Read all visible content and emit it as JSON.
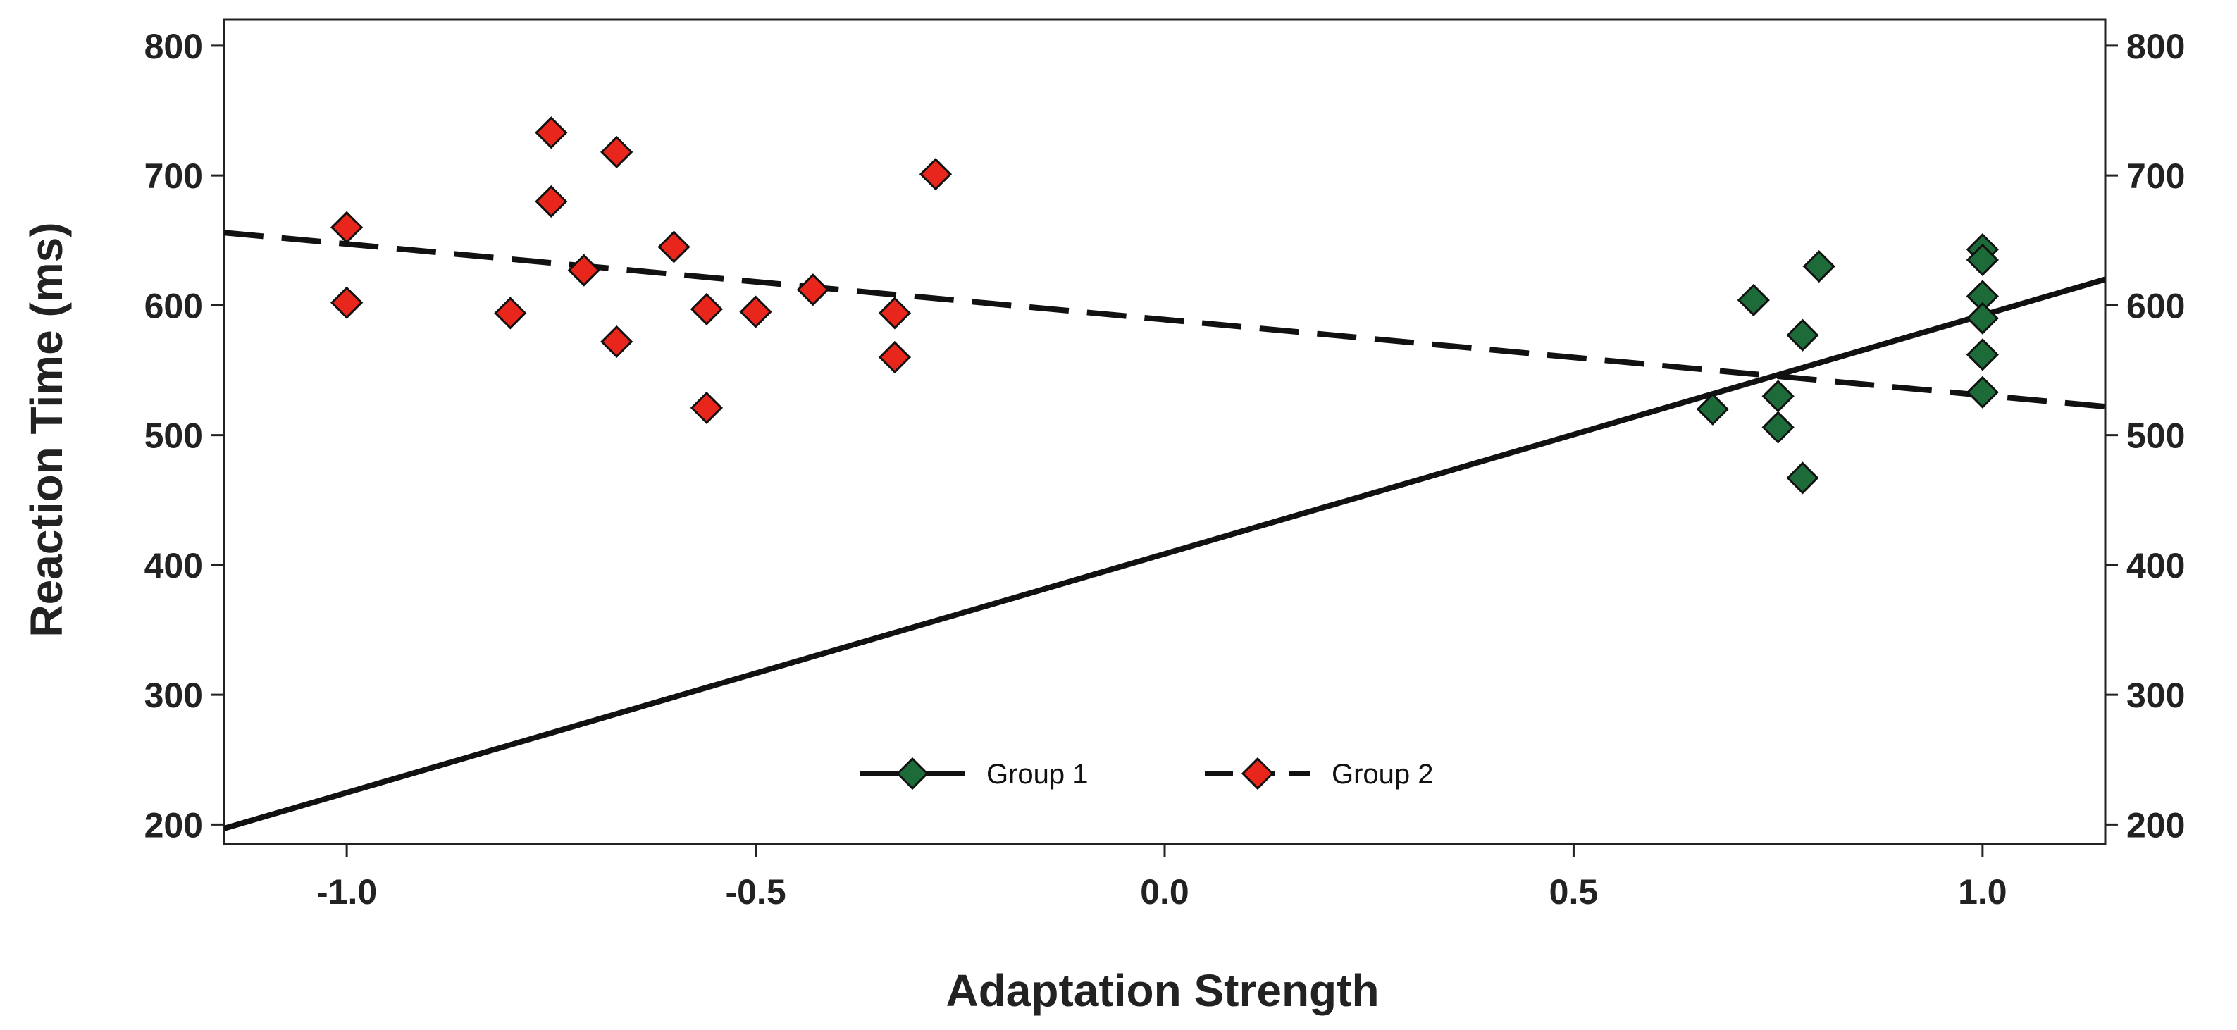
{
  "chart_data": {
    "type": "scatter",
    "title": "",
    "xlabel": "Adaptation Strength",
    "ylabel": "Reaction Time (ms)",
    "xlim": [
      -1.15,
      1.15
    ],
    "ylim": [
      185,
      820
    ],
    "xticks": [
      -1.0,
      -0.5,
      0.0,
      0.5,
      1.0
    ],
    "xtick_labels": [
      "-1.0",
      "-0.5",
      "0.0",
      "0.5",
      "1.0"
    ],
    "yticks": [
      200,
      300,
      400,
      500,
      600,
      700,
      800
    ],
    "ytick_labels": [
      "200",
      "300",
      "400",
      "500",
      "600",
      "700",
      "800"
    ],
    "right_axis": true,
    "grid": false,
    "legend_position": "bottom-center",
    "series": [
      {
        "name": "Group 1",
        "color": "#1e6b3a",
        "marker": "diamond",
        "line_style": "solid",
        "fit_line": {
          "x": [
            -1.15,
            1.15
          ],
          "y": [
            197,
            620
          ]
        },
        "points": [
          {
            "x": 0.67,
            "y": 520
          },
          {
            "x": 0.72,
            "y": 604
          },
          {
            "x": 0.75,
            "y": 530
          },
          {
            "x": 0.75,
            "y": 506
          },
          {
            "x": 0.78,
            "y": 577
          },
          {
            "x": 0.78,
            "y": 467
          },
          {
            "x": 0.8,
            "y": 630
          },
          {
            "x": 1.0,
            "y": 643
          },
          {
            "x": 1.0,
            "y": 635
          },
          {
            "x": 1.0,
            "y": 607
          },
          {
            "x": 1.0,
            "y": 590
          },
          {
            "x": 1.0,
            "y": 562
          },
          {
            "x": 1.0,
            "y": 533
          }
        ]
      },
      {
        "name": "Group 2",
        "color": "#e8261c",
        "marker": "diamond",
        "line_style": "dashed",
        "fit_line": {
          "x": [
            -1.15,
            1.15
          ],
          "y": [
            656,
            522
          ]
        },
        "points": [
          {
            "x": -1.0,
            "y": 660
          },
          {
            "x": -1.0,
            "y": 602
          },
          {
            "x": -0.8,
            "y": 594
          },
          {
            "x": -0.75,
            "y": 733
          },
          {
            "x": -0.75,
            "y": 680
          },
          {
            "x": -0.71,
            "y": 627
          },
          {
            "x": -0.67,
            "y": 718
          },
          {
            "x": -0.67,
            "y": 572
          },
          {
            "x": -0.6,
            "y": 645
          },
          {
            "x": -0.56,
            "y": 597
          },
          {
            "x": -0.56,
            "y": 521
          },
          {
            "x": -0.5,
            "y": 595
          },
          {
            "x": -0.43,
            "y": 612
          },
          {
            "x": -0.33,
            "y": 594
          },
          {
            "x": -0.33,
            "y": 560
          },
          {
            "x": -0.28,
            "y": 701
          }
        ]
      }
    ]
  }
}
